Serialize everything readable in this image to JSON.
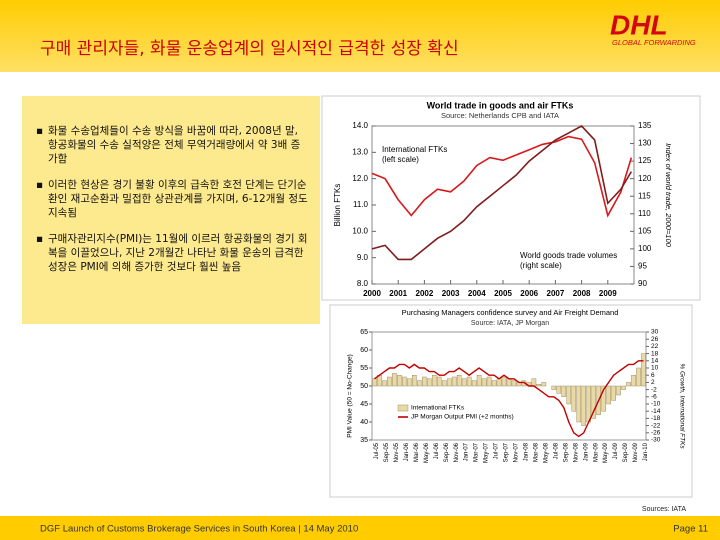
{
  "slide": {
    "title": "구매 관리자들, 화물 운송업계의 일시적인 급격한 성장 확신",
    "logo": {
      "brand": "DHL",
      "tagline": "GLOBAL FORWARDING"
    },
    "bullets": [
      "화물 수송업체들이 수송 방식을 바꿈에 따라, 2008년 말, 항공화물의 수송 실적양은 전체 무역거래량에서 약 3배 증가함",
      "이러한 현상은 경기 불황 이후의 급속한 호전 단계는 단기순환인 재고순환과 밀접한 상관관계를 가지며, 6-12개월 정도 지속됨",
      "구매자관리지수(PMI)는 11월에 이르러 항공화물의 경기 회복을 이끌었으나, 지난 2개월간 나타난 화물 운송의 급격한 성장은 PMI에 의해 증가한 것보다 훨씬 높음"
    ],
    "sources": "Sources: IATA",
    "footer": "DGF Launch of Customs Brokerage Services in South Korea | 14 May 2010",
    "page": "Page 11"
  },
  "chart_data": [
    {
      "type": "line",
      "title": "World trade in goods and air FTKs",
      "subtitle": "Source: Netherlands CPB and IATA",
      "ylabel": "Billion FTKs",
      "y2label": "Index of world trade, 2000=100",
      "annotations": [
        "International FTKs",
        "(left scale)",
        "World goods trade volumes",
        "(right scale)"
      ],
      "x": [
        2000,
        2000.5,
        2001,
        2001.5,
        2002,
        2002.5,
        2003,
        2003.5,
        2004,
        2004.5,
        2005,
        2005.5,
        2006,
        2006.5,
        2007,
        2007.5,
        2008,
        2008.5,
        2009,
        2009.5,
        2009.9
      ],
      "xlim": [
        2000,
        2010
      ],
      "xticks": [
        2000,
        2001,
        2002,
        2003,
        2004,
        2005,
        2006,
        2007,
        2008,
        2009
      ],
      "ylim": [
        8,
        14
      ],
      "yticks": [
        {
          "value": 8,
          "label": "8.0"
        },
        {
          "value": 9,
          "label": "9.0"
        },
        {
          "value": 10,
          "label": "10.0"
        },
        {
          "value": 11,
          "label": "11.0"
        },
        {
          "value": 12,
          "label": "12.0"
        },
        {
          "value": 13,
          "label": "13.0"
        },
        {
          "value": 14,
          "label": "14.0"
        }
      ],
      "y2lim": [
        90,
        135
      ],
      "y2ticks": [
        90,
        95,
        100,
        105,
        110,
        115,
        120,
        125,
        130,
        135
      ],
      "series": [
        {
          "name": "International FTKs",
          "color": "#d7191c",
          "values": [
            12.2,
            12.0,
            11.2,
            10.6,
            11.2,
            11.6,
            11.5,
            11.9,
            12.5,
            12.8,
            12.7,
            12.9,
            13.1,
            13.3,
            13.4,
            13.6,
            13.5,
            12.6,
            10.6,
            11.5,
            12.8
          ]
        },
        {
          "name": "World goods trade volumes",
          "color": "#7f1d1d",
          "axis": "y2",
          "values": [
            100,
            101,
            97,
            97,
            100,
            103,
            105,
            108,
            112,
            115,
            118,
            121,
            125,
            128,
            131,
            133,
            135,
            131,
            113,
            117,
            122
          ]
        }
      ]
    },
    {
      "type": "combo",
      "title": "Purchasing Managers confidence survey and Air Freight Demand",
      "subtitle": "Source: IATA, JP Morgan",
      "ylabel": "PMI Value (50 = No-Change)",
      "y2label": "% Growth, International FTKs",
      "categories": [
        "Jul-05",
        null,
        "Sep-05",
        null,
        "Nov-05",
        null,
        "Jan-06",
        null,
        "Mar-06",
        null,
        "May-06",
        null,
        "Jul-06",
        null,
        "Sep-06",
        null,
        "Nov-06",
        null,
        "Jan-07",
        null,
        "Mar-07",
        null,
        "May-07",
        null,
        "Jul-07",
        null,
        "Sep-07",
        null,
        "Nov-07",
        null,
        "Jan-08",
        null,
        "Mar-08",
        null,
        "May-08",
        null,
        "Jul-08",
        null,
        "Sep-08",
        null,
        "Nov-08",
        null,
        "Jan-09",
        null,
        "Mar-09",
        null,
        "May-09",
        null,
        "Jul-09",
        null,
        "Sep-09",
        null,
        "Nov-09",
        null,
        "Jan-10"
      ],
      "ylim": [
        35,
        65
      ],
      "yticks": [
        35,
        40,
        45,
        50,
        55,
        60,
        65
      ],
      "y2lim": [
        -30,
        30
      ],
      "y2ticks": [
        -30,
        -26,
        -22,
        -18,
        -14,
        -10,
        -6,
        -2,
        2,
        6,
        10,
        14,
        18,
        22,
        26,
        30
      ],
      "series": [
        {
          "name": "International FTKs",
          "kind": "bar",
          "axis": "y2",
          "color": "#e9d9a6",
          "values": [
            4,
            6,
            3,
            5,
            7,
            6,
            5,
            4,
            6,
            3,
            5,
            4,
            6,
            5,
            3,
            4,
            5,
            6,
            4,
            5,
            3,
            6,
            4,
            5,
            3,
            4,
            5,
            4,
            3,
            2,
            3,
            2,
            4,
            1,
            2,
            0,
            -2,
            -4,
            -6,
            -10,
            -14,
            -20,
            -22,
            -20,
            -18,
            -16,
            -14,
            -10,
            -8,
            -5,
            -2,
            2,
            6,
            10,
            18
          ]
        },
        {
          "name": "JP Morgan Output PMI (+2 months)",
          "kind": "line",
          "color": "#c00000",
          "values": [
            52,
            53,
            54,
            55,
            55,
            56,
            56,
            55,
            56,
            55,
            55,
            54,
            54,
            53,
            53,
            54,
            54,
            55,
            54,
            53,
            54,
            55,
            54,
            53,
            53,
            52,
            53,
            52,
            52,
            51,
            51,
            50,
            50,
            49,
            48,
            47,
            47,
            46,
            44,
            40,
            37,
            36,
            37,
            40,
            43,
            46,
            49,
            51,
            53,
            54,
            55,
            56,
            56,
            57,
            57
          ]
        }
      ]
    }
  ]
}
